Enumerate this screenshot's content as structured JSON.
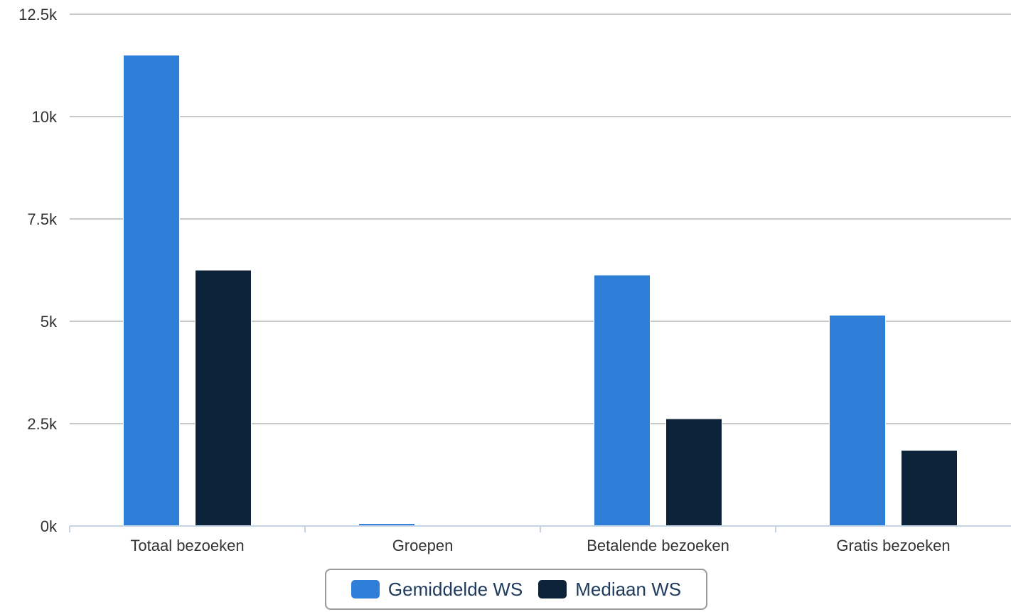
{
  "chart_data": {
    "type": "bar",
    "categories": [
      "Totaal bezoeken",
      "Groepen",
      "Betalende bezoeken",
      "Gratis bezoeken"
    ],
    "series": [
      {
        "name": "Gemiddelde WS",
        "color": "#2f7ed8",
        "values": [
          11500,
          60,
          6130,
          5150
        ]
      },
      {
        "name": "Mediaan WS",
        "color": "#0d233a",
        "values": [
          6250,
          15,
          2620,
          1850
        ]
      }
    ],
    "ylim": [
      0,
      12500
    ],
    "yticks": [
      0,
      2500,
      5000,
      7500,
      10000,
      12500
    ],
    "ytick_labels": [
      "0k",
      "2.5k",
      "5k",
      "7.5k",
      "10k",
      "12.5k"
    ],
    "title": "",
    "xlabel": "",
    "ylabel": "",
    "grid": true,
    "legend_position": "bottom-center"
  },
  "legend": {
    "items": [
      {
        "label": "Gemiddelde WS",
        "color": "#2f7ed8"
      },
      {
        "label": "Mediaan WS",
        "color": "#0d233a"
      }
    ]
  }
}
